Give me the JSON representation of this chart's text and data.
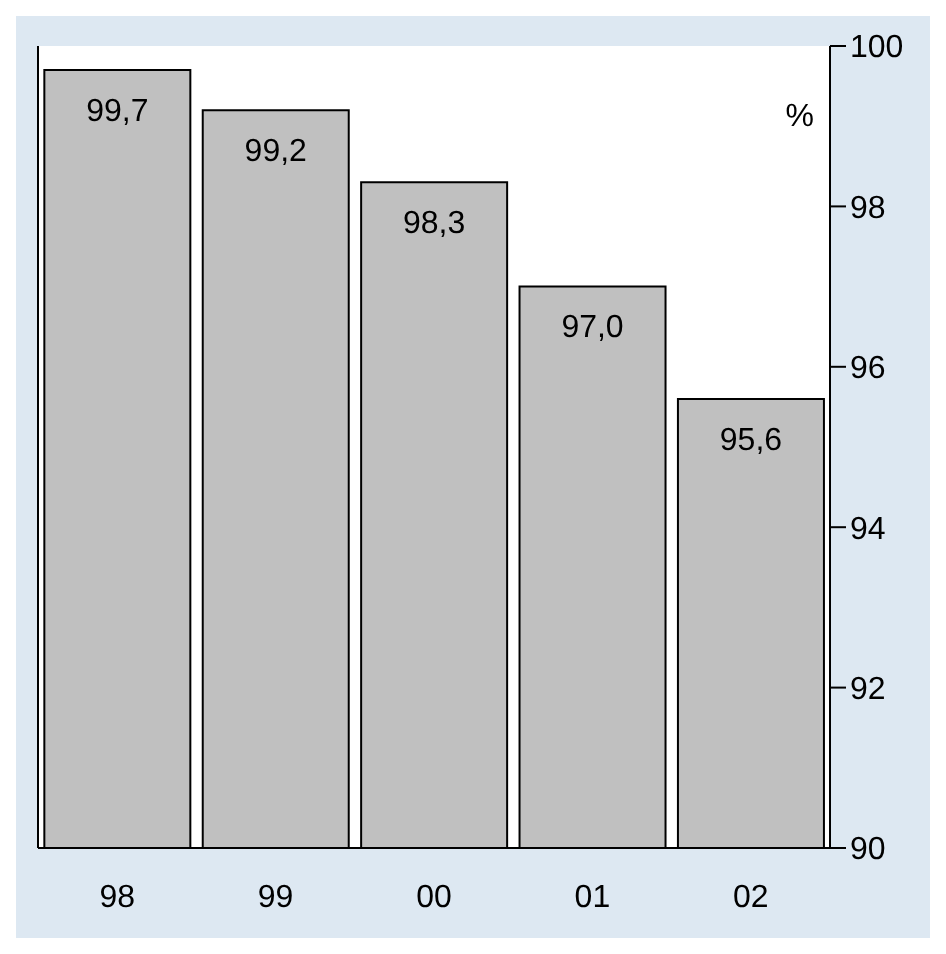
{
  "chart_data": {
    "type": "bar",
    "ylabel": "%",
    "categories": [
      "98",
      "99",
      "00",
      "01",
      "02"
    ],
    "values": [
      99.7,
      99.2,
      98.3,
      97.0,
      95.6
    ],
    "value_labels": [
      "99,7",
      "99,2",
      "98,3",
      "97,0",
      "95,6"
    ],
    "color": "#c0c0c0",
    "ylim": [
      90,
      100
    ],
    "yticks": [
      90,
      92,
      94,
      96,
      98,
      100
    ],
    "grid": false
  }
}
